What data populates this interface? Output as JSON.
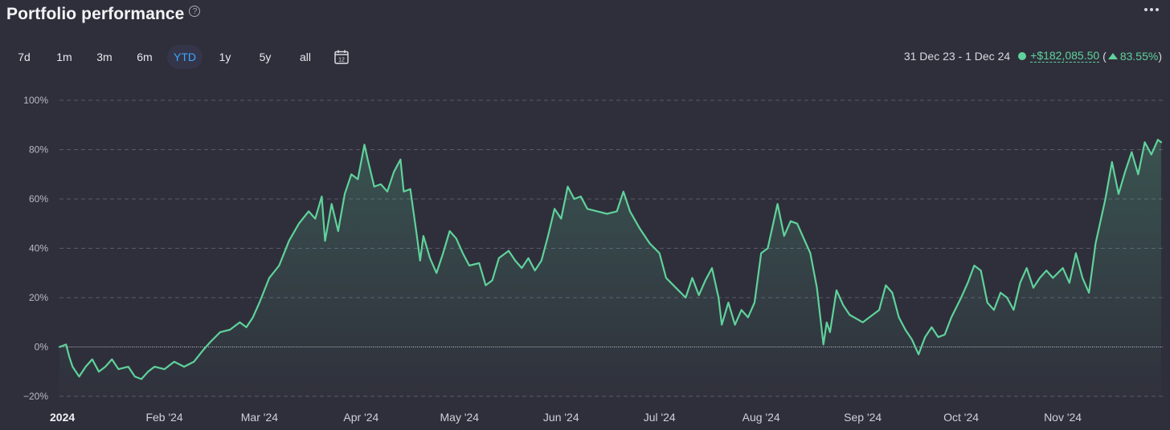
{
  "header": {
    "title": "Portfolio performance",
    "help_glyph": "?"
  },
  "range_buttons": [
    "7d",
    "1m",
    "3m",
    "6m",
    "YTD",
    "1y",
    "5y",
    "all"
  ],
  "active_range": "YTD",
  "calendar_day": "12",
  "summary": {
    "period": "31 Dec 23 - 1 Dec 24",
    "gain": "+$182,085.50",
    "open_paren": "(",
    "pct": "83.55%",
    "close_paren": ")"
  },
  "colors": {
    "line": "#5fd29b",
    "background": "#2f2f3b",
    "active_tab_text": "#3aa8ff"
  },
  "chart_data": {
    "type": "area",
    "y_unit": "%",
    "ylim": [
      -20,
      100
    ],
    "y_ticks": [
      "100%",
      "80%",
      "60%",
      "40%",
      "20%",
      "0%",
      "−20%"
    ],
    "y_tick_values": [
      100,
      80,
      60,
      40,
      20,
      0,
      -20
    ],
    "x_tick_labels": [
      "2024",
      "Feb '24",
      "Mar '24",
      "Apr '24",
      "May '24",
      "Jun '24",
      "Jul '24",
      "Aug '24",
      "Sep '24",
      "Oct '24",
      "Nov '24"
    ],
    "x_tick_dates": [
      "2024-01-01",
      "2024-02-01",
      "2024-03-01",
      "2024-04-01",
      "2024-05-01",
      "2024-06-01",
      "2024-07-01",
      "2024-08-01",
      "2024-09-01",
      "2024-10-01",
      "2024-11-01"
    ],
    "grid": true,
    "series": [
      {
        "points": [
          [
            "2023-12-31",
            0
          ],
          [
            "2024-01-02",
            1
          ],
          [
            "2024-01-03",
            -4
          ],
          [
            "2024-01-04",
            -8
          ],
          [
            "2024-01-06",
            -12
          ],
          [
            "2024-01-08",
            -8
          ],
          [
            "2024-01-10",
            -5
          ],
          [
            "2024-01-12",
            -10
          ],
          [
            "2024-01-14",
            -8
          ],
          [
            "2024-01-16",
            -5
          ],
          [
            "2024-01-18",
            -9
          ],
          [
            "2024-01-21",
            -8
          ],
          [
            "2024-01-23",
            -12
          ],
          [
            "2024-01-25",
            -13
          ],
          [
            "2024-01-27",
            -10
          ],
          [
            "2024-01-29",
            -8
          ],
          [
            "2024-02-01",
            -9
          ],
          [
            "2024-02-04",
            -6
          ],
          [
            "2024-02-07",
            -8
          ],
          [
            "2024-02-10",
            -6
          ],
          [
            "2024-02-13",
            -1
          ],
          [
            "2024-02-15",
            2
          ],
          [
            "2024-02-18",
            6
          ],
          [
            "2024-02-21",
            7
          ],
          [
            "2024-02-24",
            10
          ],
          [
            "2024-02-26",
            8
          ],
          [
            "2024-02-28",
            12
          ],
          [
            "2024-03-01",
            18
          ],
          [
            "2024-03-04",
            28
          ],
          [
            "2024-03-07",
            33
          ],
          [
            "2024-03-10",
            43
          ],
          [
            "2024-03-13",
            50
          ],
          [
            "2024-03-16",
            55
          ],
          [
            "2024-03-18",
            52
          ],
          [
            "2024-03-20",
            61
          ],
          [
            "2024-03-21",
            43
          ],
          [
            "2024-03-23",
            58
          ],
          [
            "2024-03-25",
            47
          ],
          [
            "2024-03-27",
            62
          ],
          [
            "2024-03-29",
            70
          ],
          [
            "2024-03-31",
            68
          ],
          [
            "2024-04-02",
            82
          ],
          [
            "2024-04-03",
            76
          ],
          [
            "2024-04-05",
            65
          ],
          [
            "2024-04-07",
            66
          ],
          [
            "2024-04-09",
            63
          ],
          [
            "2024-04-11",
            71
          ],
          [
            "2024-04-13",
            76
          ],
          [
            "2024-04-14",
            63
          ],
          [
            "2024-04-16",
            64
          ],
          [
            "2024-04-18",
            45
          ],
          [
            "2024-04-19",
            35
          ],
          [
            "2024-04-20",
            45
          ],
          [
            "2024-04-22",
            36
          ],
          [
            "2024-04-24",
            30
          ],
          [
            "2024-04-26",
            38
          ],
          [
            "2024-04-28",
            47
          ],
          [
            "2024-04-30",
            44
          ],
          [
            "2024-05-02",
            38
          ],
          [
            "2024-05-04",
            33
          ],
          [
            "2024-05-07",
            34
          ],
          [
            "2024-05-09",
            25
          ],
          [
            "2024-05-11",
            27
          ],
          [
            "2024-05-13",
            36
          ],
          [
            "2024-05-16",
            39
          ],
          [
            "2024-05-18",
            35
          ],
          [
            "2024-05-20",
            32
          ],
          [
            "2024-05-22",
            36
          ],
          [
            "2024-05-24",
            31
          ],
          [
            "2024-05-26",
            35
          ],
          [
            "2024-05-28",
            45
          ],
          [
            "2024-05-30",
            56
          ],
          [
            "2024-06-01",
            52
          ],
          [
            "2024-06-03",
            65
          ],
          [
            "2024-06-05",
            60
          ],
          [
            "2024-06-07",
            61
          ],
          [
            "2024-06-09",
            56
          ],
          [
            "2024-06-12",
            55
          ],
          [
            "2024-06-15",
            54
          ],
          [
            "2024-06-18",
            55
          ],
          [
            "2024-06-20",
            63
          ],
          [
            "2024-06-22",
            55
          ],
          [
            "2024-06-25",
            48
          ],
          [
            "2024-06-28",
            42
          ],
          [
            "2024-07-01",
            38
          ],
          [
            "2024-07-03",
            28
          ],
          [
            "2024-07-06",
            24
          ],
          [
            "2024-07-09",
            20
          ],
          [
            "2024-07-11",
            28
          ],
          [
            "2024-07-13",
            21
          ],
          [
            "2024-07-15",
            27
          ],
          [
            "2024-07-17",
            32
          ],
          [
            "2024-07-19",
            20
          ],
          [
            "2024-07-20",
            9
          ],
          [
            "2024-07-22",
            18
          ],
          [
            "2024-07-24",
            9
          ],
          [
            "2024-07-26",
            15
          ],
          [
            "2024-07-28",
            12
          ],
          [
            "2024-07-30",
            18
          ],
          [
            "2024-08-01",
            38
          ],
          [
            "2024-08-03",
            40
          ],
          [
            "2024-08-06",
            58
          ],
          [
            "2024-08-08",
            45
          ],
          [
            "2024-08-10",
            51
          ],
          [
            "2024-08-12",
            50
          ],
          [
            "2024-08-14",
            44
          ],
          [
            "2024-08-16",
            38
          ],
          [
            "2024-08-18",
            24
          ],
          [
            "2024-08-20",
            1
          ],
          [
            "2024-08-21",
            10
          ],
          [
            "2024-08-22",
            6
          ],
          [
            "2024-08-24",
            23
          ],
          [
            "2024-08-26",
            17
          ],
          [
            "2024-08-28",
            13
          ],
          [
            "2024-09-01",
            10
          ],
          [
            "2024-09-03",
            12
          ],
          [
            "2024-09-06",
            15
          ],
          [
            "2024-09-08",
            25
          ],
          [
            "2024-09-10",
            22
          ],
          [
            "2024-09-12",
            12
          ],
          [
            "2024-09-14",
            7
          ],
          [
            "2024-09-16",
            3
          ],
          [
            "2024-09-18",
            -3
          ],
          [
            "2024-09-20",
            4
          ],
          [
            "2024-09-22",
            8
          ],
          [
            "2024-09-24",
            4
          ],
          [
            "2024-09-26",
            5
          ],
          [
            "2024-09-28",
            12
          ],
          [
            "2024-10-01",
            20
          ],
          [
            "2024-10-03",
            26
          ],
          [
            "2024-10-05",
            33
          ],
          [
            "2024-10-07",
            31
          ],
          [
            "2024-10-09",
            18
          ],
          [
            "2024-10-11",
            15
          ],
          [
            "2024-10-13",
            22
          ],
          [
            "2024-10-15",
            20
          ],
          [
            "2024-10-17",
            15
          ],
          [
            "2024-10-19",
            26
          ],
          [
            "2024-10-21",
            32
          ],
          [
            "2024-10-23",
            24
          ],
          [
            "2024-10-25",
            28
          ],
          [
            "2024-10-27",
            31
          ],
          [
            "2024-10-29",
            28
          ],
          [
            "2024-11-01",
            32
          ],
          [
            "2024-11-03",
            26
          ],
          [
            "2024-11-05",
            38
          ],
          [
            "2024-11-07",
            28
          ],
          [
            "2024-11-09",
            22
          ],
          [
            "2024-11-11",
            42
          ],
          [
            "2024-11-14",
            60
          ],
          [
            "2024-11-16",
            75
          ],
          [
            "2024-11-18",
            62
          ],
          [
            "2024-11-20",
            71
          ],
          [
            "2024-11-22",
            79
          ],
          [
            "2024-11-24",
            70
          ],
          [
            "2024-11-26",
            83
          ],
          [
            "2024-11-28",
            78
          ],
          [
            "2024-11-30",
            84
          ],
          [
            "2024-12-01",
            83
          ]
        ]
      }
    ]
  }
}
